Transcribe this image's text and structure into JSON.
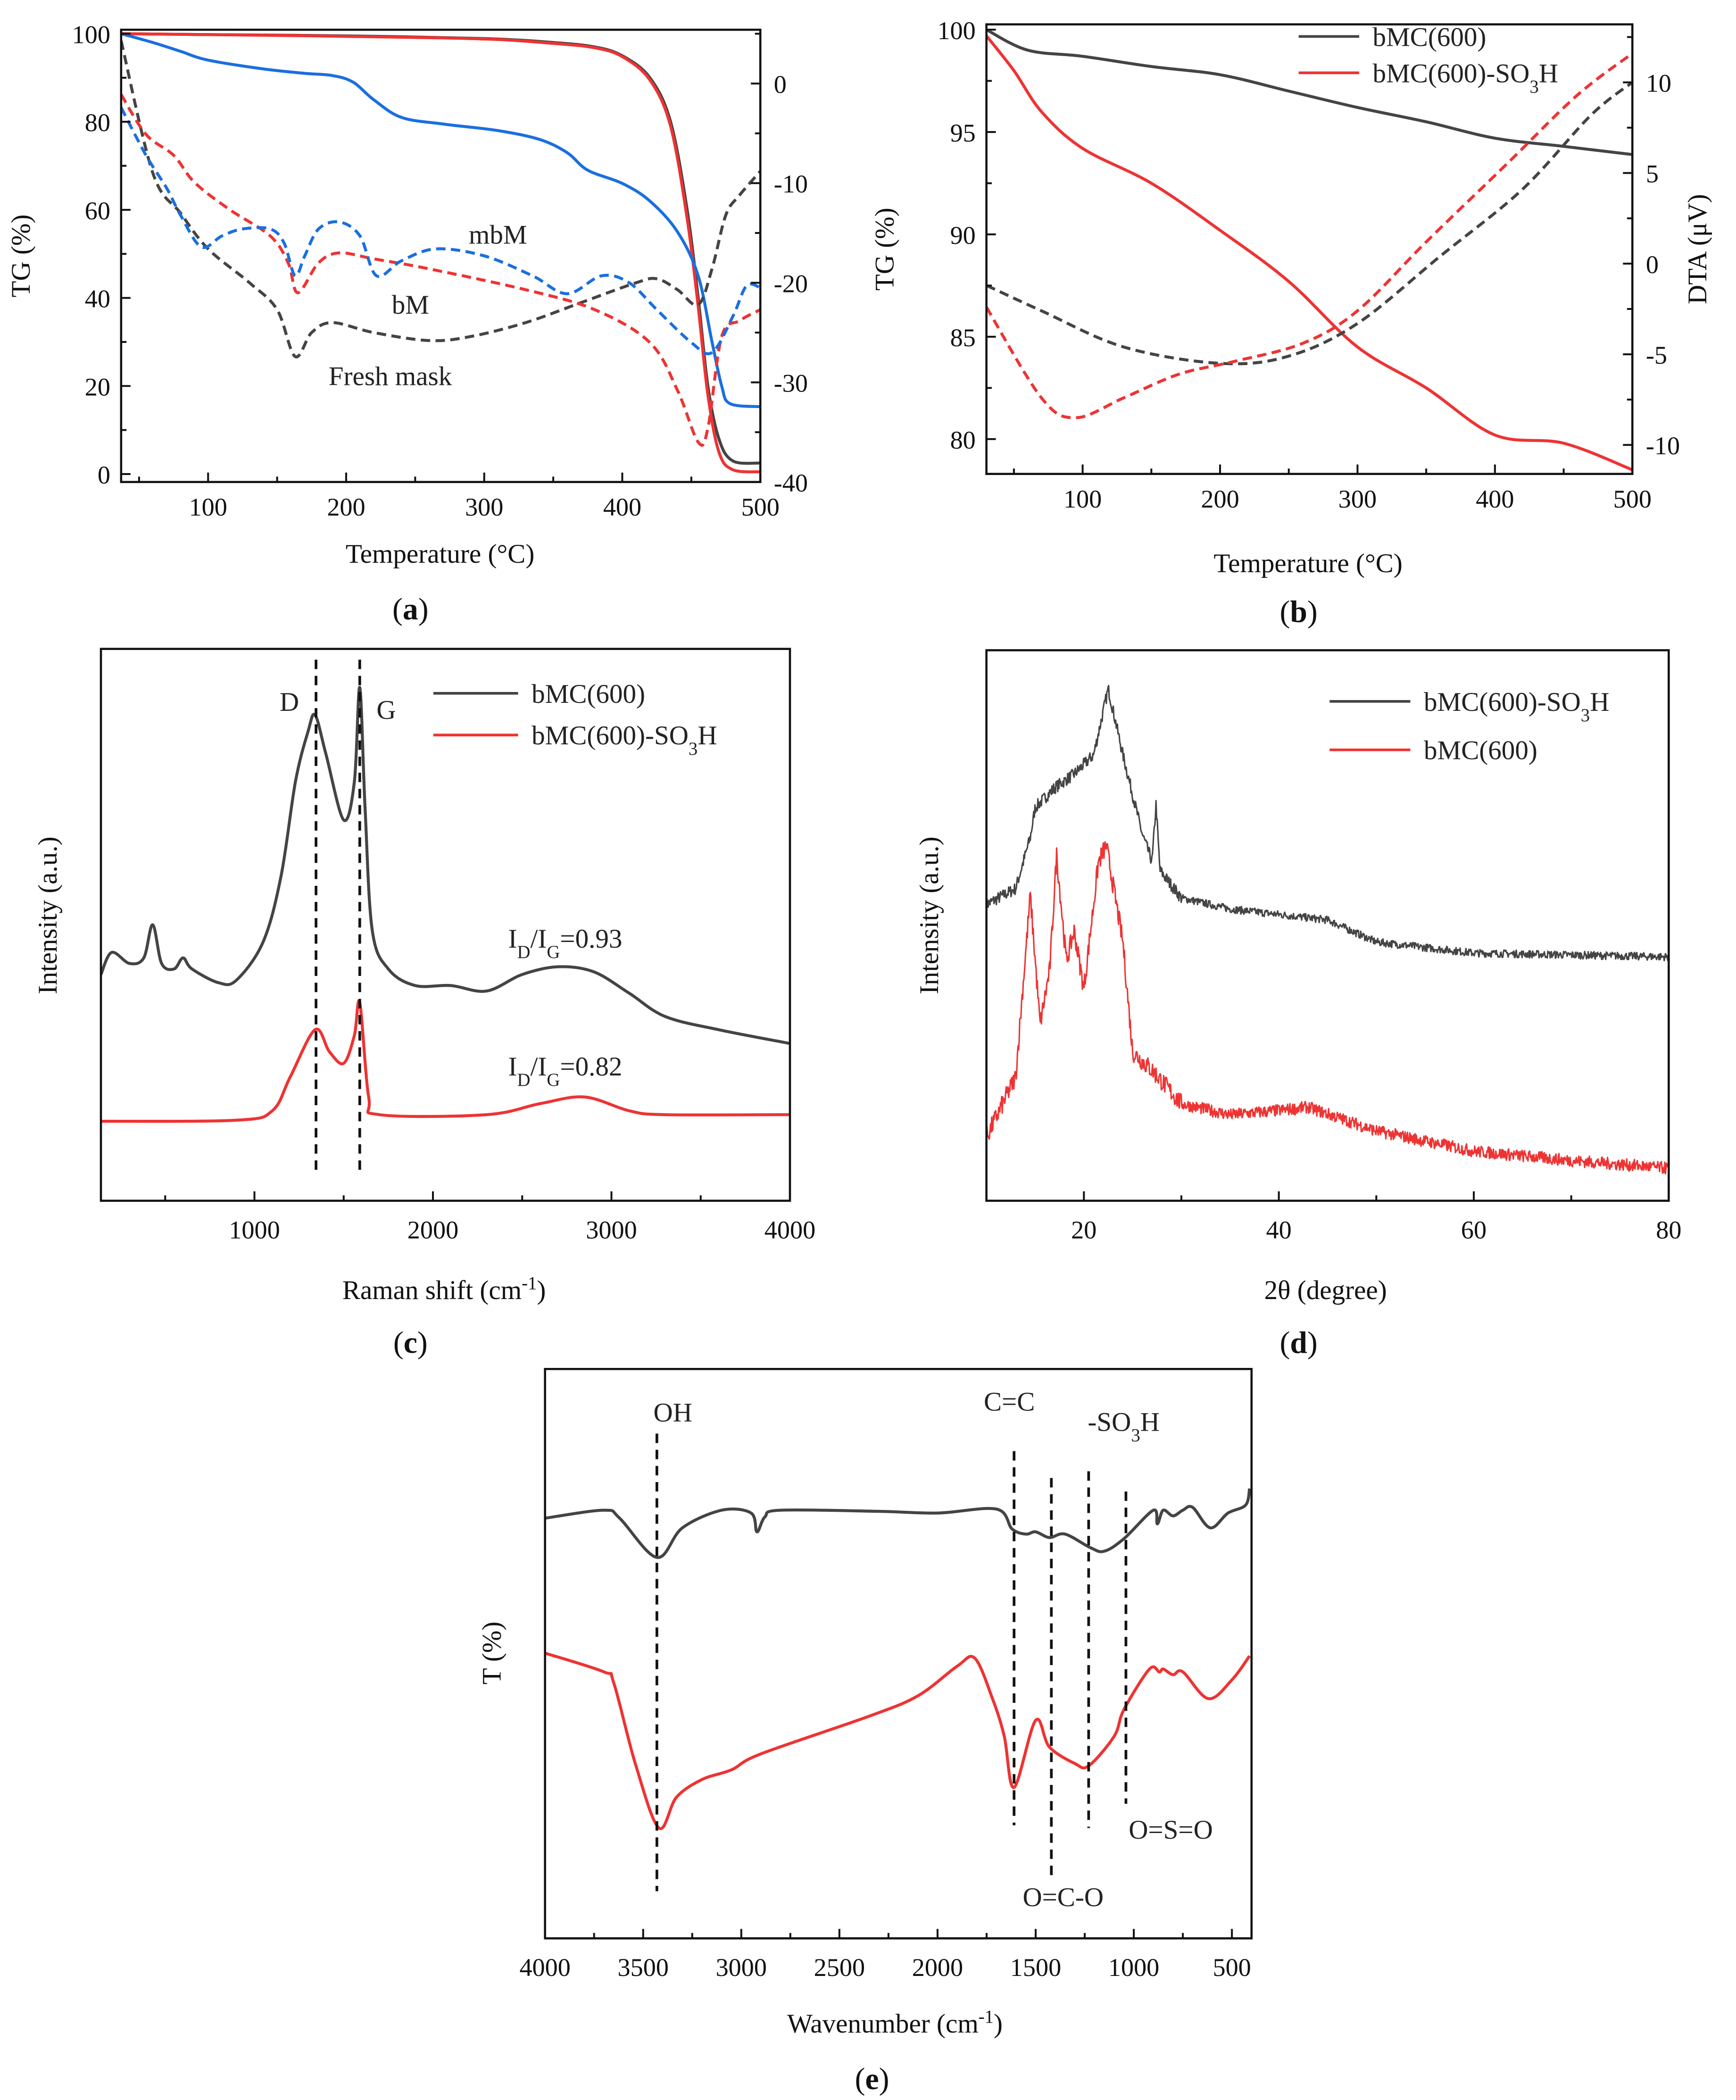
{
  "chart_data": [
    {
      "id": "a",
      "type": "line",
      "panel_label": "(a)",
      "xlabel": "Temperature (°C)",
      "ylabel": "TG (%)",
      "y2label": "",
      "xlim": [
        37,
        500
      ],
      "ylim": [
        -1.8,
        100.9
      ],
      "y2lim": [
        -40,
        5.4
      ],
      "xticks": [
        100,
        200,
        300,
        400,
        500
      ],
      "xminor": 50,
      "yticks": [
        0,
        20,
        40,
        60,
        80,
        100
      ],
      "yminor": 10,
      "y2ticks": [
        -40,
        -30,
        -20,
        -10,
        0
      ],
      "y2minor": 5,
      "series": [
        {
          "name": "Fresh mask TG",
          "color": "#444444",
          "dash": false,
          "axis": "left",
          "x": [
            37,
            100,
            200,
            300,
            350,
            380,
            400,
            420,
            435,
            447,
            455,
            462,
            470,
            480,
            500
          ],
          "y": [
            100,
            99.8,
            99.5,
            98.9,
            98,
            97,
            95,
            90,
            80,
            60,
            40,
            20,
            8,
            3,
            2.5
          ]
        },
        {
          "name": "bM TG",
          "color": "#ee3333",
          "dash": false,
          "axis": "left",
          "x": [
            37,
            100,
            200,
            300,
            350,
            380,
            400,
            420,
            435,
            447,
            455,
            462,
            470,
            480,
            500
          ],
          "y": [
            100,
            99.8,
            99.4,
            98.8,
            97.8,
            96.8,
            94.8,
            89.5,
            79,
            58,
            38,
            18,
            5,
            1,
            0.5
          ]
        },
        {
          "name": "mbM TG",
          "color": "#1a6fe0",
          "dash": false,
          "axis": "left",
          "x": [
            37,
            60,
            80,
            100,
            140,
            170,
            190,
            205,
            220,
            240,
            270,
            310,
            340,
            360,
            375,
            400,
            420,
            440,
            455,
            465,
            472,
            478,
            500
          ],
          "y": [
            100,
            98,
            96,
            94,
            92,
            91,
            90.5,
            89,
            85,
            81,
            79.5,
            78,
            76,
            73,
            69,
            66,
            62,
            55,
            45,
            30,
            20,
            16,
            15.3
          ]
        },
        {
          "name": "Fresh mask DTA",
          "color": "#444444",
          "dash": true,
          "axis": "right",
          "x": [
            37,
            60,
            80,
            100,
            130,
            150,
            163,
            175,
            190,
            220,
            260,
            290,
            330,
            370,
            410,
            425,
            440,
            455,
            465,
            475,
            485,
            500
          ],
          "y": [
            4.3,
            -9,
            -13,
            -16.6,
            -20,
            -22.7,
            -27.4,
            -25,
            -24,
            -25,
            -25.8,
            -25.4,
            -24,
            -22,
            -20,
            -19.6,
            -20.7,
            -22.2,
            -18.6,
            -13.2,
            -11.2,
            -8.8
          ]
        },
        {
          "name": "bM DTA",
          "color": "#ee3333",
          "dash": true,
          "axis": "right",
          "x": [
            37,
            55,
            75,
            90,
            115,
            145,
            158,
            165,
            180,
            195,
            220,
            260,
            330,
            380,
            420,
            440,
            455,
            462,
            472,
            485,
            500
          ],
          "y": [
            -1.1,
            -5.1,
            -7.2,
            -9.9,
            -12.6,
            -15.3,
            -18,
            -21,
            -18,
            -17,
            -17.6,
            -18.6,
            -20.7,
            -22.7,
            -26,
            -30.8,
            -36,
            -34.6,
            -25.4,
            -23.8,
            -22.7
          ]
        },
        {
          "name": "mbM DTA",
          "color": "#1a6fe0",
          "dash": true,
          "axis": "right",
          "x": [
            37,
            55,
            70,
            80,
            95,
            110,
            125,
            145,
            155,
            163,
            170,
            180,
            195,
            210,
            222,
            240,
            265,
            300,
            335,
            360,
            385,
            405,
            425,
            450,
            465,
            480,
            490,
            500
          ],
          "y": [
            -2.4,
            -7.2,
            -10.5,
            -13.2,
            -16.4,
            -15.3,
            -14.6,
            -14.6,
            -16,
            -19.3,
            -17.3,
            -14.6,
            -13.9,
            -15.3,
            -19.3,
            -17.8,
            -16.6,
            -17.3,
            -19.3,
            -21.1,
            -19.3,
            -20,
            -22.7,
            -26,
            -27,
            -23.4,
            -20.3,
            -20.5
          ]
        }
      ],
      "annotations": [
        "mbM",
        "bM",
        "Fresh mask"
      ],
      "legend": []
    },
    {
      "id": "b",
      "type": "line",
      "panel_label": "(b)",
      "xlabel": "Temperature (°C)",
      "ylabel": "TG (%)",
      "y2label": "DTA (μV)",
      "xlim": [
        30,
        500
      ],
      "ylim": [
        78.3,
        100.26
      ],
      "y2lim": [
        -11.6,
        13.2
      ],
      "xticks": [
        100,
        200,
        300,
        400,
        500
      ],
      "xminor": 50,
      "yticks": [
        80,
        85,
        90,
        95,
        100
      ],
      "yminor": 2.5,
      "y2ticks": [
        -10,
        -5,
        0,
        5,
        10
      ],
      "y2minor": 2.5,
      "series": [
        {
          "name": "bMC(600)",
          "color": "#444444",
          "dash": false,
          "axis": "left",
          "x": [
            30,
            60,
            100,
            150,
            200,
            250,
            300,
            350,
            400,
            450,
            500
          ],
          "y": [
            100,
            99,
            98.7,
            98.2,
            97.8,
            97,
            96.2,
            95.5,
            94.7,
            94.3,
            93.9
          ]
        },
        {
          "name": "bMC(600)-SO_3H",
          "color": "#ee3333",
          "dash": false,
          "axis": "left",
          "x": [
            30,
            50,
            70,
            100,
            150,
            200,
            250,
            300,
            350,
            400,
            450,
            500
          ],
          "y": [
            99.7,
            98,
            96,
            94.2,
            92.5,
            90.2,
            87.7,
            84.5,
            82.5,
            80.2,
            79.8,
            78.5
          ]
        },
        {
          "name": "bMC(600) DTA",
          "color": "#444444",
          "dash": true,
          "axis": "right",
          "x": [
            30,
            70,
            130,
            200,
            250,
            300,
            360,
            420,
            470,
            500
          ],
          "y": [
            -1.2,
            -2.6,
            -4.6,
            -5.5,
            -5.1,
            -3.3,
            0.4,
            4.1,
            8.2,
            10
          ]
        },
        {
          "name": "bMC(600)-SO3H DTA",
          "color": "#ee3333",
          "dash": true,
          "axis": "right",
          "x": [
            30,
            70,
            95,
            130,
            170,
            210,
            260,
            300,
            350,
            410,
            460,
            500
          ],
          "y": [
            -2.4,
            -7.4,
            -8.5,
            -7.4,
            -6.1,
            -5.4,
            -4.4,
            -2.6,
            1.2,
            5.6,
            9.3,
            11.6
          ]
        }
      ],
      "annotations": [],
      "legend": [
        "bMC(600)",
        "bMC(600)-SO_3H"
      ]
    },
    {
      "id": "c",
      "type": "line",
      "panel_label": "(c)",
      "xlabel": "Raman shift (cm^{-1})",
      "ylabel": "Intensity (a.u.)",
      "y2label": "",
      "xlim": [
        140,
        4000
      ],
      "ylim": [
        0,
        100
      ],
      "xticks": [
        1000,
        2000,
        3000,
        4000
      ],
      "xminor": 500,
      "yticks": [],
      "y2ticks": [],
      "series": [
        {
          "name": "bMC(600)",
          "color": "#444444",
          "dash": false,
          "axis": "left",
          "x": [
            140,
            200,
            300,
            380,
            430,
            480,
            550,
            600,
            650,
            800,
            900,
            1050,
            1150,
            1230,
            1300,
            1340,
            1400,
            1500,
            1560,
            1590,
            1620,
            1660,
            1750,
            1900,
            2100,
            2300,
            2500,
            2700,
            2900,
            3100,
            3300,
            3600,
            4000
          ],
          "y": [
            41,
            45,
            43,
            44,
            50,
            43,
            42,
            44,
            42,
            39.5,
            40,
            47,
            59,
            76,
            85,
            88,
            81,
            69,
            76,
            93,
            71,
            49,
            42,
            39,
            39,
            38,
            41,
            42.4,
            41.5,
            37.6,
            33.4,
            31,
            28.5
          ]
        },
        {
          "name": "bMC(600)-SO_3H",
          "color": "#ee3333",
          "dash": false,
          "axis": "left",
          "x": [
            140,
            900,
            1100,
            1200,
            1340,
            1420,
            1500,
            1560,
            1590,
            1640,
            1700,
            2300,
            2600,
            2850,
            3100,
            3300,
            4000
          ],
          "y": [
            14.4,
            14.6,
            16.3,
            22.4,
            31,
            27,
            24.9,
            30,
            35.9,
            18.8,
            15.6,
            15.6,
            17.6,
            18.8,
            16.3,
            15.6,
            15.6
          ]
        }
      ],
      "vlines": [
        1345,
        1590
      ],
      "annotations": [
        "D",
        "G",
        "I_D/I_G=0.93",
        "I_D/I_G=0.82"
      ],
      "legend": [
        "bMC(600)",
        "bMC(600)-SO_3H"
      ]
    },
    {
      "id": "d",
      "type": "line",
      "panel_label": "(d)",
      "xlabel": "2θ (degree)",
      "ylabel": "Intensity (a.u.)",
      "y2label": "",
      "xlim": [
        10,
        80
      ],
      "ylim": [
        0,
        100
      ],
      "xticks": [
        20,
        40,
        60,
        80
      ],
      "xminor": 10,
      "yticks": [],
      "y2ticks": [],
      "series": [
        {
          "name": "bMC(600)-SO_3H",
          "color": "#444444",
          "dash": false,
          "axis": "left",
          "x": [
            10,
            13,
            14.5,
            15,
            17,
            19,
            21,
            22.5,
            24,
            26,
            27,
            27.4,
            27.8,
            30,
            35,
            45,
            50,
            60,
            80
          ],
          "y": [
            53.8,
            56.7,
            66,
            71.4,
            75,
            77.5,
            81,
            93,
            81,
            66.5,
            61.6,
            72,
            60,
            55,
            53,
            51,
            47,
            45,
            44.3
          ]
        },
        {
          "name": "bMC(600)",
          "color": "#ee3333",
          "dash": false,
          "axis": "left",
          "x": [
            10,
            13,
            14.5,
            15.5,
            16.5,
            17.2,
            18.2,
            19,
            20,
            21.5,
            22.3,
            24,
            25,
            27,
            30,
            35,
            40,
            43,
            50,
            60,
            70,
            80
          ],
          "y": [
            11.5,
            22.5,
            55.5,
            32,
            42,
            62.8,
            43.5,
            49,
            38.5,
            61.6,
            64.5,
            47,
            27,
            23.7,
            17.6,
            15.6,
            16.4,
            17,
            12.7,
            9,
            7.3,
            5.9
          ]
        }
      ],
      "annotations": [],
      "legend": [
        "bMC(600)-SO_3H",
        "bMC(600)"
      ]
    },
    {
      "id": "e",
      "type": "line",
      "panel_label": "(e)",
      "xlabel": "Wavenumber (cm^{-1})",
      "ylabel": "T (%)",
      "y2label": "",
      "xlim": [
        4000,
        400
      ],
      "ylim": [
        0,
        100
      ],
      "xticks": [
        4000,
        3500,
        3000,
        2500,
        2000,
        1500,
        1000,
        500
      ],
      "xminor": 250,
      "yticks": [],
      "y2ticks": [],
      "series": [
        {
          "name": "bMC(600)",
          "color": "#444444",
          "dash": false,
          "axis": "left",
          "x": [
            4000,
            3700,
            3620,
            3430,
            3300,
            3100,
            2950,
            2920,
            2880,
            2800,
            2300,
            2000,
            1700,
            1620,
            1550,
            1500,
            1430,
            1350,
            1220,
            1150,
            1050,
            900,
            880,
            850,
            800,
            750,
            700,
            610,
            520,
            430,
            410
          ],
          "y": [
            73.8,
            75.2,
            73.8,
            66.9,
            72.1,
            75.2,
            74.7,
            71.4,
            74,
            75.2,
            75,
            74.7,
            75.4,
            71.9,
            71,
            71.4,
            70.4,
            71,
            68.6,
            68,
            70.2,
            75.2,
            72.8,
            75.2,
            74.2,
            75.2,
            75.7,
            72.1,
            74.7,
            76.1,
            79
          ]
        },
        {
          "name": "bMC(600)-SO_3H",
          "color": "#ee3333",
          "dash": false,
          "axis": "left",
          "x": [
            4000,
            3700,
            3650,
            3540,
            3420,
            3330,
            3200,
            3050,
            2900,
            2350,
            2100,
            1900,
            1810,
            1720,
            1660,
            1610,
            1500,
            1430,
            1300,
            1230,
            1100,
            1050,
            920,
            870,
            850,
            800,
            750,
            620,
            500,
            410
          ],
          "y": [
            50.1,
            46.8,
            44.9,
            30.7,
            19.4,
            24.8,
            27.9,
            29.6,
            32.4,
            39,
            42.6,
            47.8,
            49.2,
            42.1,
            35.5,
            26.5,
            38.3,
            33.6,
            30.7,
            30.3,
            35.5,
            40.2,
            47.3,
            46.8,
            47.3,
            46.3,
            46.8,
            42.1,
            45.4,
            49.6
          ]
        }
      ],
      "vlines": [
        3430,
        1610,
        1420,
        1230,
        1040
      ],
      "annotations": [
        "OH",
        "C=C",
        "-SO_3H",
        "O=S=O",
        "O=C-O"
      ],
      "legend": []
    }
  ]
}
